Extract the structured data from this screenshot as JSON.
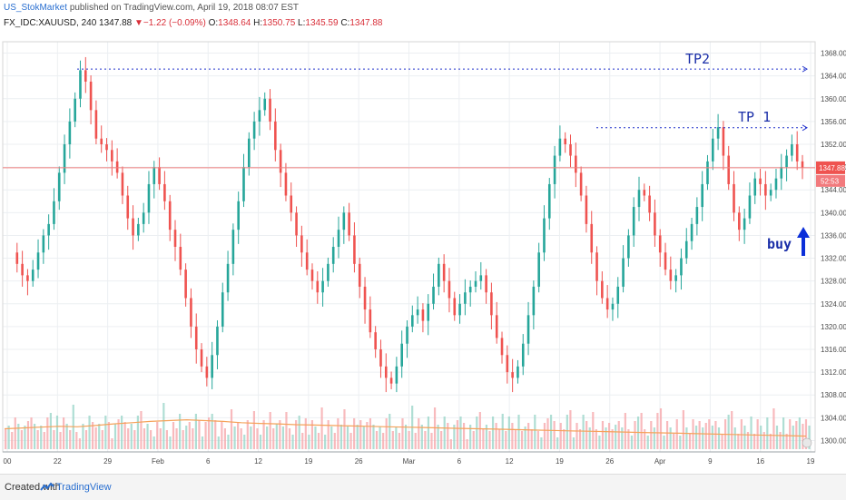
{
  "header": {
    "author": "US_StokMarket",
    "published": "published on TradingView.com, April 19, 2018 08:07 EST",
    "symbol": "FX_IDC:XAUUSD, 240",
    "last": "1347.88",
    "down_arrow": "▼",
    "change": "−1.22 (−0.09%)",
    "o_label": "O:",
    "o_value": "1348.64",
    "h_label": "H:",
    "h_value": "1350.75",
    "l_label": "L:",
    "l_value": "1345.59",
    "c_label": "C:",
    "c_value": "1347.88"
  },
  "footer": {
    "created": "Created with",
    "brand": "TradingView"
  },
  "colors": {
    "up": "#26a69a",
    "down": "#ef5350",
    "dashed": "#2233cc",
    "annotation": "#1a2ea8",
    "price_line": "#f08080",
    "ma": "#f5a25a"
  },
  "chart_data": {
    "type": "candlestick",
    "x_ticks": [
      "00",
      "22",
      "29",
      "Feb",
      "6",
      "12",
      "19",
      "26",
      "Mar",
      "6",
      "12",
      "19",
      "26",
      "Apr",
      "9",
      "16",
      "19"
    ],
    "y_ticks": [
      "1368.00",
      "1364.00",
      "1360.00",
      "1356.00",
      "1352.00",
      "1348.00",
      "1344.00",
      "1340.00",
      "1336.00",
      "1332.00",
      "1328.00",
      "1324.00",
      "1320.00",
      "1316.00",
      "1312.00",
      "1308.00",
      "1304.00",
      "1300.00"
    ],
    "ylim": [
      1298,
      1370
    ],
    "price_series": [
      1333,
      1331,
      1329,
      1328,
      1330,
      1333,
      1336,
      1338,
      1342,
      1347,
      1352,
      1356,
      1360,
      1365,
      1363,
      1358,
      1353,
      1352,
      1351,
      1349,
      1347,
      1343,
      1339,
      1336,
      1338,
      1340,
      1345,
      1348,
      1345,
      1342,
      1337,
      1334,
      1330,
      1325,
      1320,
      1316,
      1313,
      1311,
      1315,
      1320,
      1326,
      1331,
      1337,
      1342,
      1348,
      1353,
      1356,
      1358,
      1360,
      1356,
      1351,
      1347,
      1343,
      1340,
      1336,
      1333,
      1330,
      1328,
      1326,
      1328,
      1331,
      1334,
      1337,
      1340,
      1336,
      1331,
      1327,
      1323,
      1319,
      1316,
      1313,
      1311,
      1310,
      1313,
      1317,
      1320,
      1322,
      1323,
      1321,
      1324,
      1327,
      1331,
      1328,
      1325,
      1322,
      1324,
      1326,
      1327,
      1328,
      1329,
      1326,
      1322,
      1318,
      1315,
      1312,
      1311,
      1313,
      1317,
      1322,
      1327,
      1333,
      1339,
      1345,
      1350,
      1353,
      1352,
      1350,
      1347,
      1343,
      1338,
      1333,
      1328,
      1325,
      1323,
      1324,
      1327,
      1332,
      1336,
      1341,
      1344,
      1343,
      1340,
      1336,
      1333,
      1330,
      1328,
      1329,
      1332,
      1335,
      1338,
      1341,
      1345,
      1349,
      1353,
      1355,
      1350,
      1345,
      1340,
      1337,
      1339,
      1343,
      1346,
      1345,
      1343,
      1344,
      1346,
      1348,
      1350,
      1352,
      1349,
      1347.88
    ],
    "current_price": "1347.88",
    "countdown": "52:53",
    "annotations": {
      "tp2": {
        "label": "TP2",
        "price": 1365.2
      },
      "tp1": {
        "label": "TP 1",
        "price": 1354.9
      },
      "buy": {
        "label": "buy"
      }
    },
    "volume_ma_series": [
      5,
      5.2,
      5.4,
      5.6,
      5.5,
      5.8,
      6.2,
      6.5,
      6.8,
      7,
      7.2,
      7,
      6.8,
      6.5,
      6.3,
      6.2,
      6,
      5.9,
      5.8,
      5.7,
      5.6,
      5.5,
      5.4,
      5.3,
      5.2,
      5.1,
      5,
      4.9,
      4.8,
      4.7,
      4.6,
      4.5,
      4.4,
      4.3,
      4.2,
      4.1,
      4,
      3.9,
      3.8,
      3.7,
      3.6,
      3.5,
      3.4,
      3.3,
      3.2
    ]
  }
}
